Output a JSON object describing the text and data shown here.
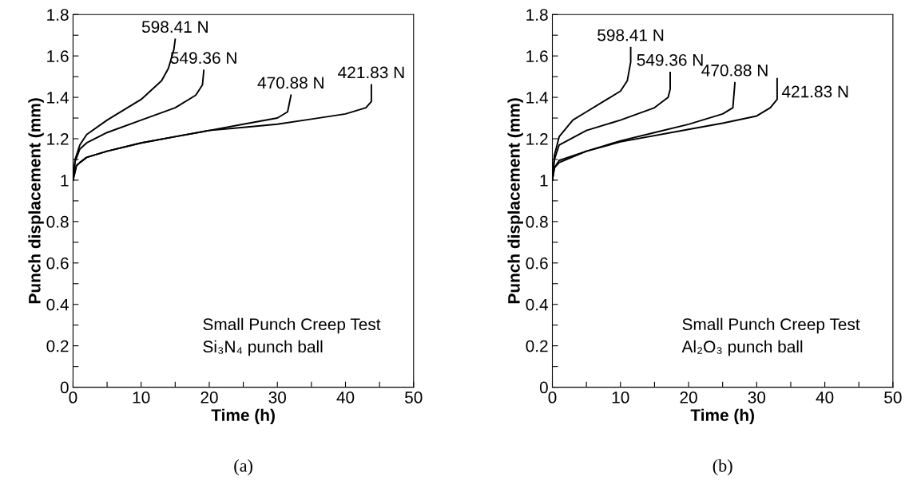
{
  "chart_data": [
    {
      "type": "line",
      "xlabel": "Time (h)",
      "ylabel": "Punch displacement (mm)",
      "xlim": [
        0,
        50
      ],
      "ylim": [
        0,
        1.8
      ],
      "xticks": [
        0,
        {
          "value": 5,
          "label": null
        },
        10,
        {
          "value": 15,
          "label": null
        },
        20,
        {
          "value": 25,
          "label": null
        },
        30,
        {
          "value": 35,
          "label": null
        },
        40,
        {
          "value": 45,
          "label": null
        },
        50
      ],
      "yticks": [
        0,
        {
          "value": 0.1,
          "label": null
        },
        0.2,
        {
          "value": 0.3,
          "label": null
        },
        0.4,
        {
          "value": 0.5,
          "label": null
        },
        0.6,
        {
          "value": 0.7,
          "label": null
        },
        0.8,
        {
          "value": 0.9,
          "label": null
        },
        1,
        {
          "value": 1.1,
          "label": null
        },
        1.2,
        {
          "value": 1.3,
          "label": null
        },
        1.4,
        {
          "value": 1.5,
          "label": null
        },
        1.6,
        {
          "value": 1.7,
          "label": null
        },
        1.8
      ],
      "grid": false,
      "legend": false,
      "marker": "none",
      "line_style": "solid",
      "series": [
        {
          "name": "598.41 N",
          "color": "#000000",
          "x": [
            0,
            0.3,
            1,
            2,
            5,
            10,
            13,
            14,
            14.8,
            15
          ],
          "values": [
            1.0,
            1.1,
            1.17,
            1.22,
            1.29,
            1.39,
            1.48,
            1.54,
            1.63,
            1.68
          ]
        },
        {
          "name": "549.36 N",
          "color": "#000000",
          "x": [
            0,
            0.3,
            1,
            2,
            5,
            10,
            15,
            18,
            19,
            19.2
          ],
          "values": [
            1.0,
            1.09,
            1.15,
            1.18,
            1.23,
            1.29,
            1.35,
            1.41,
            1.46,
            1.53
          ]
        },
        {
          "name": "470.88 N",
          "color": "#000000",
          "x": [
            0,
            0.5,
            1,
            2,
            5,
            10,
            15,
            20,
            25,
            30,
            31.5,
            32
          ],
          "values": [
            1.0,
            1.07,
            1.085,
            1.11,
            1.14,
            1.18,
            1.21,
            1.24,
            1.27,
            1.3,
            1.33,
            1.41
          ]
        },
        {
          "name": "421.83 N",
          "color": "#000000",
          "x": [
            0,
            0.5,
            1,
            2,
            5,
            10,
            15,
            20,
            25,
            30,
            35,
            40,
            43,
            43.8,
            43.8
          ],
          "values": [
            1.0,
            1.07,
            1.085,
            1.11,
            1.14,
            1.18,
            1.21,
            1.24,
            1.255,
            1.27,
            1.295,
            1.32,
            1.35,
            1.38,
            1.46
          ]
        }
      ],
      "annotations": [
        "Small Punch Creep Test",
        "Si₃N₄ punch ball",
        "(a)"
      ]
    },
    {
      "type": "line",
      "xlabel": "Time (h)",
      "ylabel": "Punch displacement (mm)",
      "xlim": [
        0,
        50
      ],
      "ylim": [
        0,
        1.8
      ],
      "xticks": [
        0,
        {
          "value": 5,
          "label": null
        },
        10,
        {
          "value": 15,
          "label": null
        },
        20,
        {
          "value": 25,
          "label": null
        },
        30,
        {
          "value": 35,
          "label": null
        },
        40,
        {
          "value": 45,
          "label": null
        },
        50
      ],
      "yticks": [
        0,
        {
          "value": 0.1,
          "label": null
        },
        0.2,
        {
          "value": 0.3,
          "label": null
        },
        0.4,
        {
          "value": 0.5,
          "label": null
        },
        0.6,
        {
          "value": 0.7,
          "label": null
        },
        0.8,
        {
          "value": 0.9,
          "label": null
        },
        1,
        {
          "value": 1.1,
          "label": null
        },
        1.2,
        {
          "value": 1.3,
          "label": null
        },
        1.4,
        {
          "value": 1.5,
          "label": null
        },
        1.6,
        {
          "value": 1.7,
          "label": null
        },
        1.8
      ],
      "grid": false,
      "legend": false,
      "marker": "none",
      "line_style": "solid",
      "series": [
        {
          "name": "598.41 N",
          "color": "#000000",
          "x": [
            0,
            0.3,
            1,
            3,
            5,
            8,
            10,
            11,
            11.5,
            11.5
          ],
          "values": [
            1.0,
            1.12,
            1.21,
            1.29,
            1.33,
            1.39,
            1.43,
            1.48,
            1.57,
            1.64
          ]
        },
        {
          "name": "549.36 N",
          "color": "#000000",
          "x": [
            0,
            0.3,
            1,
            5,
            10,
            15,
            17,
            17.3,
            17.3
          ],
          "values": [
            1.0,
            1.1,
            1.17,
            1.24,
            1.29,
            1.35,
            1.4,
            1.44,
            1.52
          ]
        },
        {
          "name": "470.88 N",
          "color": "#000000",
          "x": [
            0,
            0.3,
            1,
            5,
            10,
            15,
            20,
            25,
            26.5,
            26.8
          ],
          "values": [
            1.0,
            1.06,
            1.095,
            1.14,
            1.19,
            1.23,
            1.27,
            1.32,
            1.35,
            1.47
          ]
        },
        {
          "name": "421.83 N",
          "color": "#000000",
          "x": [
            0,
            0.3,
            1,
            5,
            10,
            20,
            25,
            30,
            32,
            33,
            33
          ],
          "values": [
            1.0,
            1.06,
            1.085,
            1.14,
            1.185,
            1.245,
            1.275,
            1.31,
            1.35,
            1.39,
            1.49
          ]
        }
      ],
      "annotations": [
        "Small Punch Creep Test",
        "Al₂O₃ punch ball",
        "(b)"
      ]
    }
  ]
}
